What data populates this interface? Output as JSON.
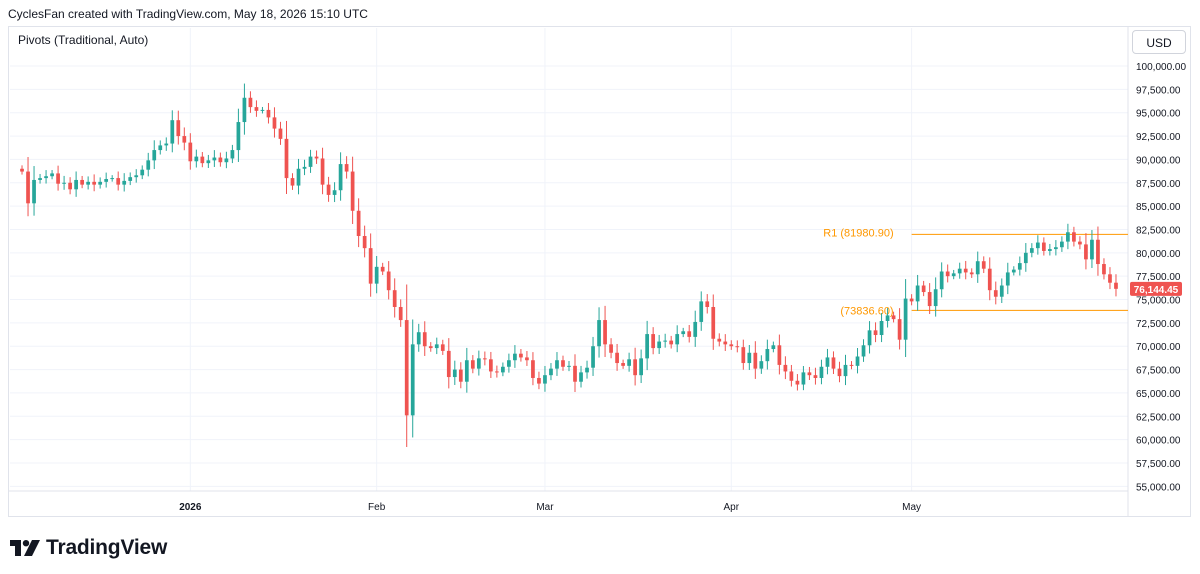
{
  "header": {
    "attribution": "CyclesFan created with TradingView.com, May 18, 2026 15:10 UTC"
  },
  "indicator": {
    "label": "Pivots (Traditional, Auto)"
  },
  "currency_button": {
    "label": "USD"
  },
  "branding": {
    "name": "TradingView",
    "logo_icon": "tradingview-logo-icon"
  },
  "colors": {
    "up": "#26a69a",
    "down": "#ef5350",
    "pivot": "#ff9800",
    "grid": "#f0f3fa",
    "text": "#131722"
  },
  "chart_data": {
    "type": "candlestick",
    "title": "",
    "ylabel": "",
    "xlabel": "",
    "ylim": [
      54500,
      101500
    ],
    "y_ticks": [
      "55,000.00",
      "57,500.00",
      "60,000.00",
      "62,500.00",
      "65,000.00",
      "67,500.00",
      "70,000.00",
      "72,500.00",
      "75,000.00",
      "77,500.00",
      "80,000.00",
      "82,500.00",
      "85,000.00",
      "87,500.00",
      "90,000.00",
      "92,500.00",
      "95,000.00",
      "97,500.00",
      "100,000.00"
    ],
    "x_ticks": [
      {
        "label": "2026",
        "date": "2026-01-01"
      },
      {
        "label": "Feb",
        "date": "2026-02-01"
      },
      {
        "label": "Mar",
        "date": "2026-03-01"
      },
      {
        "label": "Apr",
        "date": "2026-04-01"
      },
      {
        "label": "May",
        "date": "2026-05-01"
      }
    ],
    "xlim": [
      "2025-12-02",
      "2026-06-06"
    ],
    "last_price": {
      "value": 76144.45,
      "label": "76,144.45"
    },
    "pivots": [
      {
        "label": "R1 (81980.90)",
        "value": 81980.9,
        "start": "2026-05-01",
        "end": "2026-06-06"
      },
      {
        "label": "(73836.60)",
        "value": 73836.6,
        "start": "2026-05-01",
        "end": "2026-06-06"
      }
    ],
    "closes": [
      88700,
      85300,
      87800,
      88000,
      88200,
      88500,
      87400,
      87500,
      86800,
      87800,
      87300,
      87600,
      87300,
      87600,
      87900,
      88000,
      87300,
      87700,
      88100,
      88300,
      88900,
      89900,
      91000,
      91500,
      91700,
      94200,
      92500,
      91800,
      89800,
      90300,
      89600,
      89900,
      90200,
      89700,
      90100,
      91000,
      94000,
      96600,
      95600,
      95200,
      95300,
      94500,
      93300,
      92200,
      88000,
      87200,
      89000,
      89200,
      90300,
      90100,
      87300,
      86200,
      86700,
      89500,
      88700,
      84500,
      81800,
      80500,
      76700,
      78500,
      78000,
      76000,
      74200,
      72800,
      62600,
      70200,
      71500,
      70000,
      69800,
      70200,
      69500,
      66700,
      67500,
      66200,
      68500,
      67600,
      68700,
      68600,
      67300,
      67200,
      67800,
      68500,
      69200,
      68800,
      68500,
      66600,
      66000,
      66900,
      67600,
      68500,
      67800,
      67900,
      66200,
      67200,
      67700,
      70000,
      72800,
      70200,
      69300,
      68200,
      67900,
      68600,
      66900,
      68700,
      71300,
      69800,
      70500,
      70600,
      70200,
      71300,
      71600,
      71000,
      72600,
      74800,
      74200,
      70800,
      70500,
      70200,
      70000,
      69900,
      68200,
      69300,
      67600,
      68400,
      69700,
      70100,
      68000,
      67300,
      66300,
      65900,
      67200,
      66900,
      66600,
      67800,
      68800,
      67600,
      66800,
      68000,
      67900,
      68900,
      70100,
      71700,
      71200,
      72700,
      73300,
      72900,
      70700,
      75100,
      74800,
      76500,
      75800,
      74300,
      76100,
      78000,
      77500,
      77800,
      78300,
      77900,
      77700,
      79100,
      78300,
      76000,
      75300,
      76500,
      77900,
      78200,
      78900,
      80000,
      80500,
      81100,
      80200,
      80400,
      80600,
      81200,
      82200,
      81200,
      80900,
      79300,
      81400,
      78800,
      77700,
      76800,
      76144
    ]
  }
}
